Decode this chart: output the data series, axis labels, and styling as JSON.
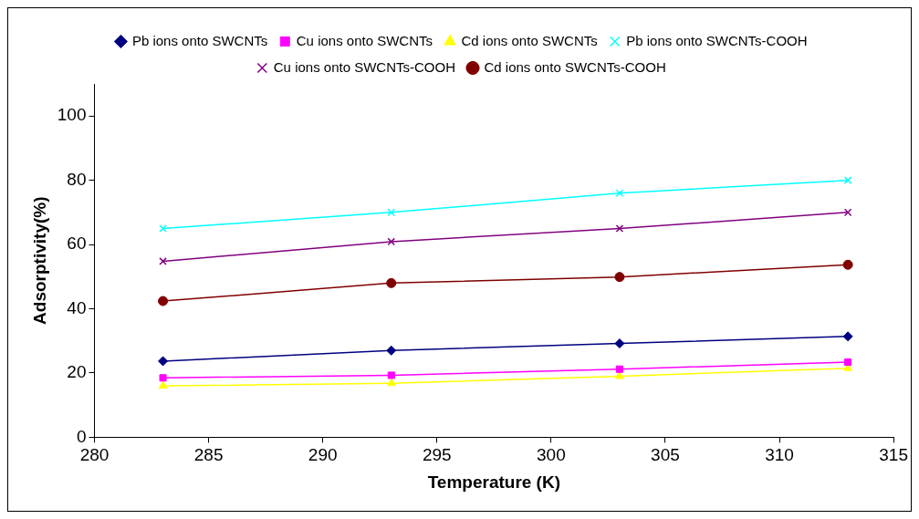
{
  "chart_data": {
    "type": "line",
    "xlabel": "Temperature (K)",
    "ylabel": "Adsorptivity(%)",
    "x": [
      283,
      293,
      303,
      313
    ],
    "xlim": [
      280,
      315
    ],
    "xticks": [
      280,
      285,
      290,
      295,
      300,
      305,
      310,
      315
    ],
    "ylim": [
      0,
      110
    ],
    "yticks": [
      0,
      20,
      40,
      60,
      80,
      100
    ],
    "grid": false,
    "legend": "top",
    "line_style": "solid",
    "series": [
      {
        "name": "Pb ions onto SWCNTs",
        "color": "#000080",
        "marker": "diamond",
        "values": [
          23.7,
          27,
          29.2,
          31.4
        ]
      },
      {
        "name": "Cu ions onto SWCNTs",
        "color": "#ff00ff",
        "marker": "square",
        "values": [
          18.5,
          19.3,
          21.2,
          23.4
        ]
      },
      {
        "name": "Cd ions onto SWCNTs",
        "color": "#ffff00",
        "marker": "triangle",
        "values": [
          16,
          16.8,
          19,
          21.5
        ]
      },
      {
        "name": "Pb ions onto SWCNTs-COOH",
        "color": "#00ffff",
        "marker": "cross",
        "values": [
          65,
          70,
          76,
          80
        ]
      },
      {
        "name": "Cu ions onto SWCNTs-COOH",
        "color": "#800080",
        "marker": "cross",
        "values": [
          54.8,
          60.9,
          65,
          70
        ]
      },
      {
        "name": "Cd ions onto SWCNTs-COOH",
        "color": "#800000",
        "marker": "circle",
        "values": [
          42.4,
          48,
          49.9,
          53.7
        ]
      }
    ]
  }
}
